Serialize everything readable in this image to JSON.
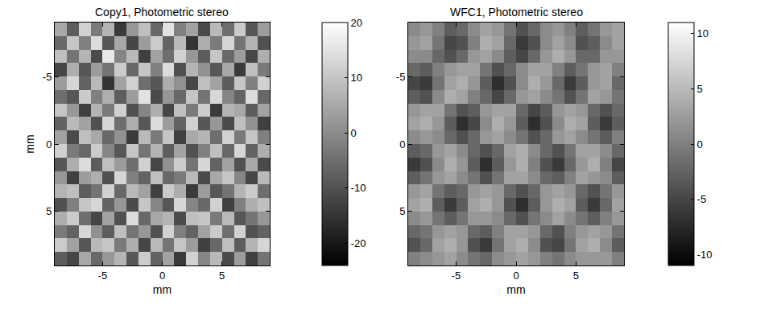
{
  "chart_data": [
    {
      "type": "heatmap",
      "title": "Copy1, Photometric stereo",
      "x_label": "mm",
      "y_label": "mm",
      "xlim": [
        -9,
        9
      ],
      "ylim": [
        9,
        -9
      ],
      "xticks": [
        -5,
        0,
        5
      ],
      "yticks": [
        -5,
        0,
        5
      ],
      "x": [
        -8.5,
        -7.5,
        -6.5,
        -5.5,
        -4.5,
        -3.5,
        -2.5,
        -1.5,
        -0.5,
        0.5,
        1.5,
        2.5,
        3.5,
        4.5,
        5.5,
        6.5,
        7.5,
        8.5
      ],
      "y": [
        -8.5,
        -7.5,
        -6.5,
        -5.5,
        -4.5,
        -3.5,
        -2.5,
        -1.5,
        -0.5,
        0.5,
        1.5,
        2.5,
        3.5,
        4.5,
        5.5,
        6.5,
        7.5,
        8.5
      ],
      "colorbar": {
        "range": [
          -24,
          20
        ],
        "ticks": [
          -20,
          -10,
          0,
          10,
          20
        ]
      },
      "z": [
        [
          5,
          -8,
          12,
          -3,
          7,
          -14,
          2,
          9,
          -6,
          15,
          -2,
          4,
          -11,
          8,
          -5,
          11,
          -9,
          3
        ],
        [
          -6,
          10,
          -2,
          14,
          -9,
          5,
          -12,
          3,
          11,
          -7,
          8,
          -15,
          6,
          -3,
          13,
          -4,
          7,
          -10
        ],
        [
          9,
          -4,
          7,
          -11,
          16,
          -1,
          8,
          -13,
          4,
          -5,
          12,
          2,
          -8,
          10,
          -6,
          3,
          -12,
          6
        ],
        [
          -12,
          6,
          -9,
          3,
          -4,
          11,
          -6,
          10,
          -2,
          14,
          -10,
          7,
          1,
          -9,
          5,
          -14,
          9,
          -3
        ],
        [
          3,
          13,
          -7,
          8,
          -15,
          4,
          12,
          -5,
          -9,
          6,
          1,
          -12,
          9,
          4,
          -8,
          10,
          -2,
          12
        ],
        [
          -5,
          -9,
          11,
          -2,
          6,
          -8,
          3,
          15,
          -11,
          2,
          -6,
          10,
          -4,
          13,
          -1,
          -7,
          14,
          -6
        ],
        [
          10,
          2,
          -13,
          7,
          -3,
          12,
          -10,
          -1,
          6,
          -12,
          9,
          -3,
          11,
          -14,
          7,
          5,
          -8,
          4
        ],
        [
          -7,
          8,
          4,
          -10,
          13,
          -5,
          6,
          -9,
          14,
          3,
          -7,
          12,
          -9,
          2,
          -11,
          9,
          1,
          -13
        ],
        [
          4,
          -11,
          9,
          5,
          -6,
          1,
          -14,
          8,
          -3,
          10,
          -13,
          5,
          7,
          -5,
          12,
          -3,
          10,
          -2
        ],
        [
          12,
          -3,
          -6,
          11,
          -1,
          -9,
          10,
          -4,
          7,
          -8,
          4,
          -10,
          -2,
          9,
          -6,
          13,
          -7,
          6
        ],
        [
          -9,
          6,
          14,
          -8,
          9,
          3,
          -5,
          12,
          -12,
          1,
          11,
          -4,
          13,
          -7,
          4,
          -10,
          5,
          -11
        ],
        [
          2,
          -13,
          3,
          6,
          -10,
          13,
          -2,
          -7,
          9,
          -6,
          -3,
          8,
          -11,
          5,
          10,
          -1,
          -12,
          8
        ],
        [
          7,
          9,
          -8,
          -4,
          12,
          -6,
          8,
          4,
          -13,
          11,
          6,
          -14,
          3,
          -9,
          -4,
          7,
          11,
          -5
        ],
        [
          -10,
          -2,
          10,
          13,
          -7,
          2,
          -11,
          10,
          -1,
          -9,
          13,
          -1,
          -6,
          12,
          -13,
          -2,
          6,
          9
        ],
        [
          6,
          11,
          -5,
          -12,
          4,
          -10,
          14,
          -6,
          5,
          7,
          -11,
          9,
          10,
          -3,
          8,
          -9,
          -4,
          2
        ],
        [
          -3,
          -7,
          13,
          1,
          -8,
          9,
          -4,
          2,
          -10,
          12,
          -2,
          -7,
          4,
          11,
          -5,
          12,
          -10,
          -7
        ],
        [
          11,
          4,
          -9,
          8,
          10,
          -3,
          6,
          -12,
          8,
          -4,
          10,
          3,
          -13,
          -6,
          9,
          -8,
          7,
          13
        ],
        [
          -8,
          -12,
          5,
          -6,
          2,
          7,
          -9,
          11,
          -7,
          4,
          -14,
          12,
          -1,
          8,
          -11,
          3,
          -13,
          -4
        ]
      ]
    },
    {
      "type": "heatmap",
      "title": "WFC1, Photometric stereo",
      "x_label": "mm",
      "xlim": [
        -9,
        9
      ],
      "ylim": [
        9,
        -9
      ],
      "xticks": [
        -5,
        0,
        5
      ],
      "yticks": [
        -5,
        0,
        5
      ],
      "x": [
        -8.5,
        -7.5,
        -6.5,
        -5.5,
        -4.5,
        -3.5,
        -2.5,
        -1.5,
        -0.5,
        0.5,
        1.5,
        2.5,
        3.5,
        4.5,
        5.5,
        6.5,
        7.5,
        8.5
      ],
      "y": [
        -8.5,
        -7.5,
        -6.5,
        -5.5,
        -4.5,
        -3.5,
        -2.5,
        -1.5,
        -0.5,
        0.5,
        1.5,
        2.5,
        3.5,
        4.5,
        5.5,
        6.5,
        7.5,
        8.5
      ],
      "colorbar": {
        "range": [
          -11,
          11
        ],
        "ticks": [
          -10,
          -5,
          0,
          5,
          10
        ]
      },
      "z": [
        [
          1,
          2,
          0,
          -3,
          -2,
          1,
          3,
          2,
          -1,
          -4,
          -2,
          1,
          2,
          0,
          -3,
          -1,
          2,
          3
        ],
        [
          2,
          3,
          -1,
          -5,
          -4,
          0,
          4,
          3,
          -2,
          -6,
          -4,
          1,
          3,
          1,
          -4,
          -3,
          1,
          3
        ],
        [
          1,
          1,
          -2,
          -4,
          -2,
          2,
          3,
          1,
          -3,
          -5,
          -2,
          2,
          4,
          2,
          -2,
          -2,
          2,
          2
        ],
        [
          -2,
          -3,
          0,
          2,
          3,
          3,
          -1,
          -4,
          -2,
          1,
          3,
          3,
          0,
          -3,
          -1,
          2,
          3,
          0
        ],
        [
          -5,
          -6,
          -1,
          3,
          4,
          2,
          -3,
          -7,
          -4,
          1,
          4,
          2,
          -2,
          -6,
          -3,
          2,
          3,
          -2
        ],
        [
          -3,
          -4,
          1,
          4,
          3,
          0,
          -2,
          -5,
          -2,
          2,
          3,
          1,
          -1,
          -4,
          -1,
          3,
          2,
          -1
        ],
        [
          2,
          3,
          3,
          -1,
          -4,
          -3,
          2,
          3,
          3,
          -2,
          -5,
          -3,
          2,
          3,
          2,
          -2,
          -4,
          -2
        ],
        [
          3,
          4,
          2,
          -3,
          -7,
          -5,
          1,
          4,
          2,
          -3,
          -7,
          -4,
          1,
          4,
          3,
          -3,
          -6,
          -3
        ],
        [
          1,
          2,
          1,
          -2,
          -4,
          -2,
          2,
          3,
          1,
          -1,
          -4,
          -2,
          2,
          3,
          1,
          -1,
          -3,
          0
        ],
        [
          -3,
          -2,
          2,
          3,
          1,
          -2,
          -4,
          -2,
          3,
          4,
          1,
          -2,
          -4,
          -1,
          3,
          3,
          1,
          -2
        ],
        [
          -6,
          -4,
          1,
          4,
          2,
          -3,
          -7,
          -3,
          2,
          4,
          0,
          -4,
          -6,
          -2,
          2,
          4,
          0,
          -5
        ],
        [
          -3,
          -1,
          2,
          3,
          1,
          -1,
          -4,
          -1,
          3,
          3,
          1,
          -2,
          -3,
          0,
          3,
          2,
          1,
          -3
        ],
        [
          2,
          3,
          -1,
          -3,
          -2,
          2,
          3,
          2,
          -2,
          -4,
          -2,
          2,
          3,
          2,
          -2,
          -4,
          -1,
          2
        ],
        [
          3,
          4,
          -3,
          -6,
          -3,
          3,
          4,
          2,
          -4,
          -7,
          -3,
          2,
          4,
          3,
          -3,
          -6,
          -2,
          3
        ],
        [
          1,
          2,
          -1,
          -3,
          -1,
          2,
          2,
          1,
          -2,
          -4,
          -1,
          1,
          3,
          1,
          -1,
          -3,
          0,
          2
        ],
        [
          -2,
          -1,
          2,
          3,
          2,
          -2,
          -3,
          0,
          3,
          3,
          2,
          -2,
          -4,
          0,
          2,
          3,
          2,
          -1
        ],
        [
          -4,
          -2,
          3,
          4,
          2,
          -4,
          -6,
          -1,
          3,
          4,
          1,
          -4,
          -5,
          -1,
          3,
          4,
          1,
          -3
        ],
        [
          0,
          1,
          2,
          3,
          1,
          -1,
          -2,
          1,
          2,
          3,
          2,
          0,
          -1,
          1,
          2,
          2,
          2,
          0
        ]
      ]
    }
  ]
}
